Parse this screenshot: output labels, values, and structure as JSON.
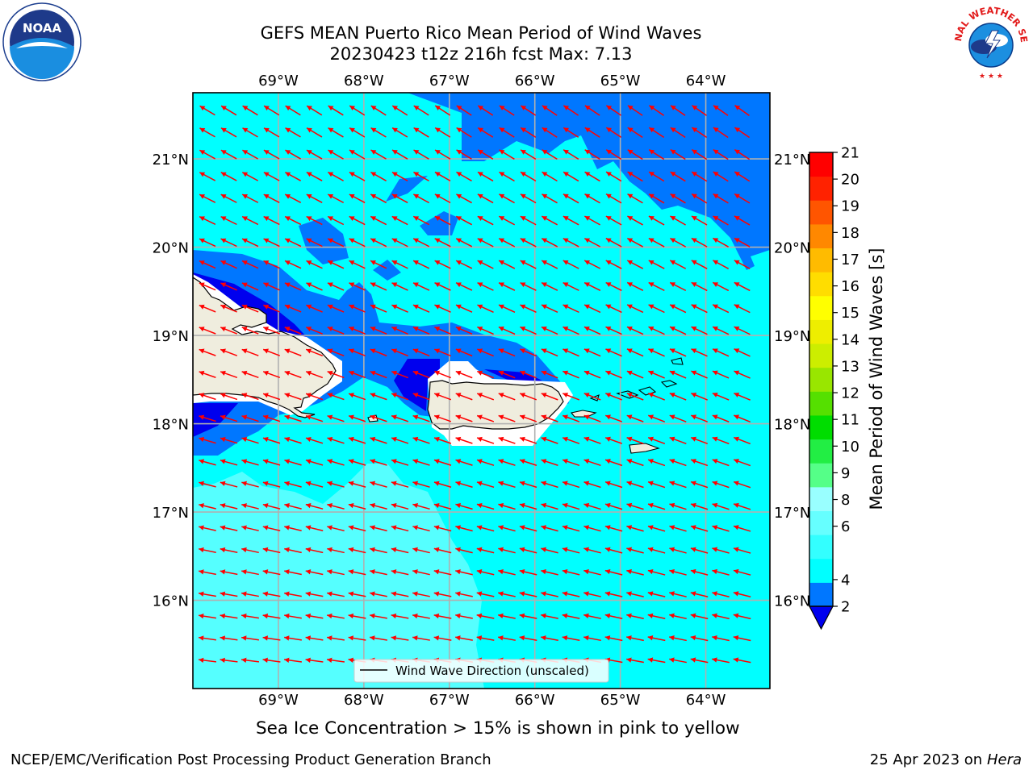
{
  "title": {
    "line1": "GEFS MEAN Puerto Rico Mean Period of Wind Waves",
    "line2": "20230423 t12z 216h fcst   Max: 7.13"
  },
  "map": {
    "lon_labels": [
      "69°W",
      "68°W",
      "67°W",
      "66°W",
      "65°W",
      "64°W"
    ],
    "lat_labels": [
      "21°N",
      "20°N",
      "19°N",
      "18°N",
      "17°N",
      "16°N"
    ],
    "lon_range": [
      -70.0,
      -63.25
    ],
    "lat_range": [
      15.0,
      21.75
    ],
    "legend_label": "Wind Wave Direction (unscaled)",
    "arrow_color": "#ff0000",
    "land_color": "#efedde"
  },
  "colorbar": {
    "label": "Mean Period of Wind Waves [s]",
    "ticks": [
      "2",
      "4",
      "6",
      "8",
      "9",
      "10",
      "11",
      "12",
      "13",
      "14",
      "15",
      "16",
      "17",
      "18",
      "19",
      "20",
      "21"
    ],
    "colors": [
      "#0077ff",
      "#00ffff",
      "#33ffff",
      "#66ffff",
      "#99ffff",
      "#55ff88",
      "#22ee44",
      "#00dd00",
      "#55e000",
      "#99e600",
      "#ccee00",
      "#eeee00",
      "#ffff00",
      "#ffdd00",
      "#ffbb00",
      "#ff8800",
      "#ff5500",
      "#ff2200",
      "#ff0000"
    ],
    "under_color": "#0000ee"
  },
  "note": "Sea Ice Concentration > 15% is shown in pink to yellow",
  "footer": {
    "left": "NCEP/EMC/Verification Post Processing Product Generation Branch",
    "right_prefix": "25 Apr 2023 on ",
    "right_host": "Hera"
  },
  "logos": {
    "noaa_text": "NOAA",
    "nws_text": "NATIONAL WEATHER SERVICE"
  }
}
